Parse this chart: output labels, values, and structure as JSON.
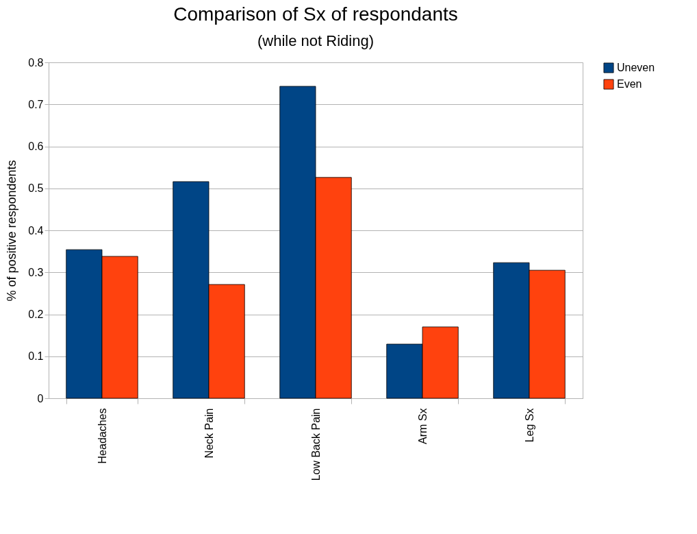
{
  "chart_data": {
    "type": "bar",
    "title": "Comparison of Sx of respondants",
    "subtitle": "(while not Riding)",
    "ylabel": "% of positive respondents",
    "categories": [
      "Headaches",
      "Neck Pain",
      "Low  Back Pain",
      "Arm Sx",
      "Leg Sx"
    ],
    "series": [
      {
        "name": "Uneven",
        "color": "#004586",
        "values": [
          0.354,
          0.516,
          0.743,
          0.129,
          0.323
        ]
      },
      {
        "name": "Even",
        "color": "#ff420e",
        "values": [
          0.338,
          0.271,
          0.526,
          0.17,
          0.305
        ]
      }
    ],
    "ylim": [
      0,
      0.8
    ],
    "yticks": [
      0,
      0.1,
      0.2,
      0.3,
      0.4,
      0.5,
      0.6,
      0.7,
      0.8
    ],
    "grid": "y",
    "legend": "right"
  }
}
